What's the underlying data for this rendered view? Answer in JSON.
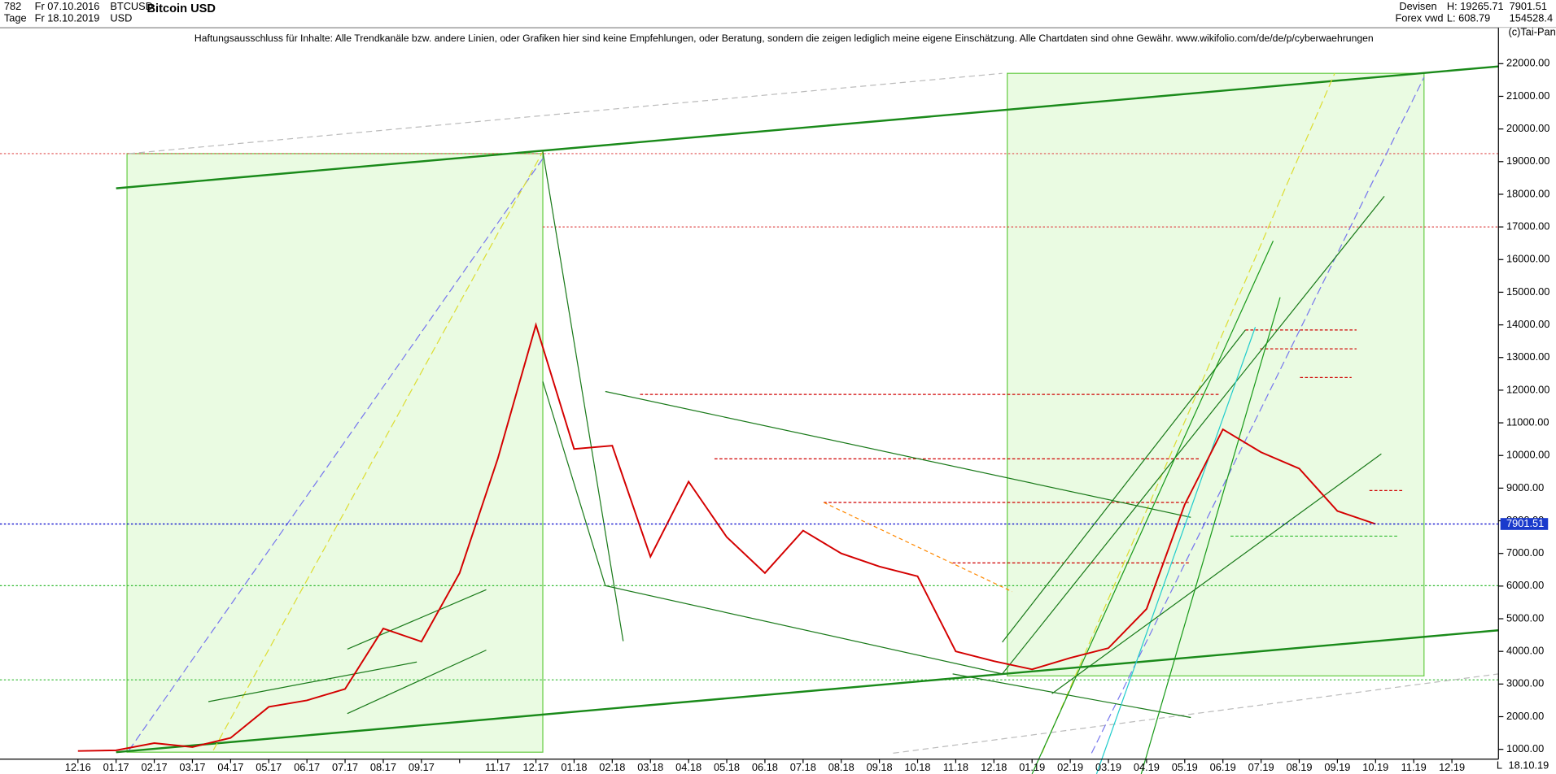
{
  "header": {
    "count": "782",
    "date_from": "Fr 07.10.2016",
    "period": "Tage",
    "date_to": "Fr 18.10.2019",
    "symbol": "BTCUSD",
    "currency": "USD",
    "title": "Bitcoin USD",
    "market": "Devisen",
    "source": "Forex vwd",
    "high": "H: 19265.71",
    "low": "L: 608.79",
    "volume": "154528.4",
    "copyright": "(c)Tai-Pan",
    "disclaimer": "Haftungsausschluss für Inhalte: Alle Trendkanäle bzw. andere Linien, oder Grafiken hier sind keine Empfehlungen, oder Beratung, sondern die zeigen lediglich meine eigene Einschätzung. Alle Chartdaten sind ohne Gewähr.  www.wikifolio.com/de/de/p/cyberwaehrungen",
    "end_date": "18.10.19",
    "scale_mode": "L"
  },
  "chart_data": {
    "type": "line",
    "categories": [
      "12.16",
      "01.17",
      "02.17",
      "03.17",
      "04.17",
      "05.17",
      "06.17",
      "07.17",
      "08.17",
      "09.17",
      null,
      "11.17",
      "12.17",
      "01.18",
      "02.18",
      "03.18",
      "04.18",
      "05.18",
      "06.18",
      "07.18",
      "08.18",
      "09.18",
      "10.18",
      "11.18",
      "12.18",
      "01.19",
      "02.19",
      "03.19",
      "04.19",
      "05.19",
      "06.19",
      "07.19",
      "08.19",
      "09.19",
      "10.19",
      "11.19",
      "12.19"
    ],
    "series": [
      {
        "name": "BTCUSD",
        "color": "#d40000",
        "values": [
          950,
          970,
          1190,
          1070,
          1350,
          2300,
          2500,
          2850,
          4700,
          4300,
          6400,
          9900,
          14000,
          10200,
          10300,
          6900,
          9200,
          7500,
          6400,
          7700,
          7000,
          6600,
          6300,
          4000,
          3700,
          3450,
          3800,
          4100,
          5300,
          8500,
          10800,
          10100,
          9600,
          8300,
          7901.51,
          null,
          null
        ]
      }
    ],
    "last_price": 7901.51,
    "ylim": [
      700,
      23100
    ],
    "yticks": [
      {
        "value": 1000,
        "label": "1000.00"
      },
      {
        "value": 2000,
        "label": "2000.00"
      },
      {
        "value": 3000,
        "label": "3000.00"
      },
      {
        "value": 4000,
        "label": "4000.00"
      },
      {
        "value": 5000,
        "label": "5000.00"
      },
      {
        "value": 6000,
        "label": "6000.00"
      },
      {
        "value": 7000,
        "label": "7000.00"
      },
      {
        "value": 8000,
        "label": "8000.00"
      },
      {
        "value": 9000,
        "label": "9000.00"
      },
      {
        "value": 10000,
        "label": "10000.00"
      },
      {
        "value": 11000,
        "label": "11000.00"
      },
      {
        "value": 12000,
        "label": "12000.00"
      },
      {
        "value": 13000,
        "label": "13000.00"
      },
      {
        "value": 14000,
        "label": "14000.00"
      },
      {
        "value": 15000,
        "label": "15000.00"
      },
      {
        "value": 16000,
        "label": "16000.00"
      },
      {
        "value": 17000,
        "label": "17000.00"
      },
      {
        "value": 18000,
        "label": "18000.00"
      },
      {
        "value": 19000,
        "label": "19000.00"
      },
      {
        "value": 20000,
        "label": "20000.00"
      },
      {
        "value": 21000,
        "label": "21000.00"
      },
      {
        "value": 22000,
        "label": "22000.00"
      }
    ]
  }
}
